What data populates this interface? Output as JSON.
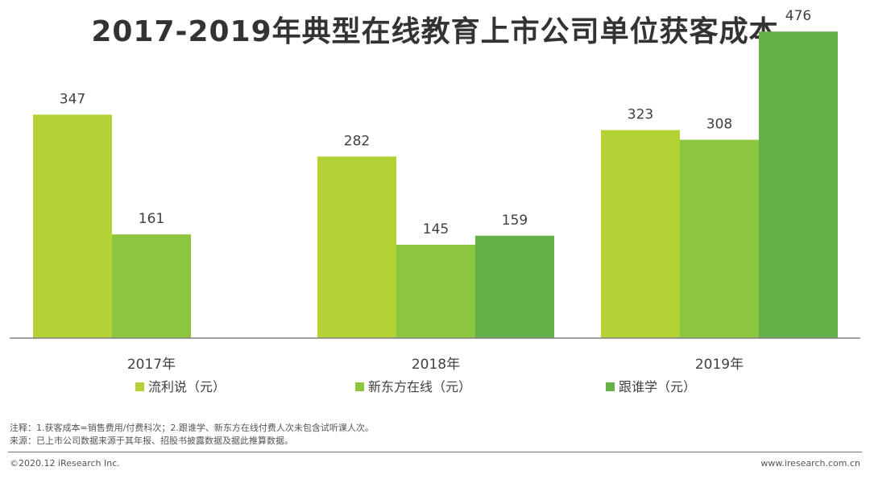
{
  "title": "2017-2019年典型在线教育上市公司单位获客成本",
  "chart_data": {
    "type": "bar",
    "categories": [
      "2017年",
      "2018年",
      "2019年"
    ],
    "series": [
      {
        "name": "流利说（元）",
        "color": "#b2d235",
        "values": [
          347,
          282,
          323
        ]
      },
      {
        "name": "新东方在线（元）",
        "color": "#8dc63f",
        "values": [
          161,
          145,
          308
        ]
      },
      {
        "name": "跟谁学（元）",
        "color": "#66b04a",
        "values": [
          null,
          159,
          476
        ]
      }
    ],
    "ylim": [
      0,
      500
    ],
    "grid": false,
    "legend": "bottom"
  },
  "notes": {
    "line1": "注释：1.获客成本=销售费用/付费科次；2.跟谁学、新东方在线付费人次未包含试听课人次。",
    "line2": "来源：已上市公司数据来源于其年报、招股书披露数据及据此推算数据。"
  },
  "footer": {
    "copyright": "©2020.12 iResearch Inc.",
    "website": "www.iresearch.com.cn"
  }
}
